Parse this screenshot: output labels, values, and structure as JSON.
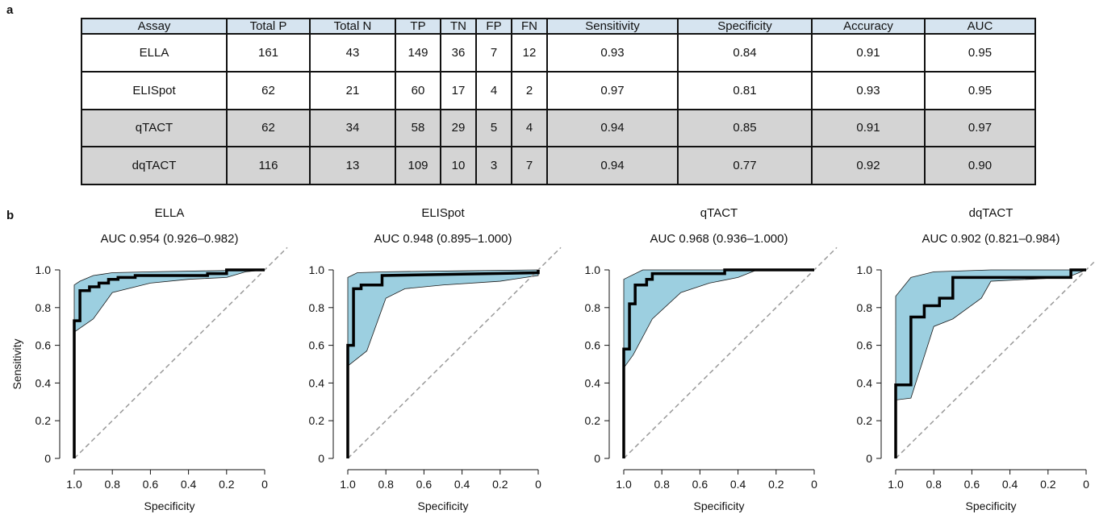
{
  "panel_labels": {
    "a": "a",
    "b": "b"
  },
  "table": {
    "headers": [
      "Assay",
      "Total P",
      "Total N",
      "TP",
      "TN",
      "FP",
      "FN",
      "Sensitivity",
      "Specificity",
      "Accuracy",
      "AUC"
    ],
    "rows": [
      [
        "ELLA",
        "161",
        "43",
        "149",
        "36",
        "7",
        "12",
        "0.93",
        "0.84",
        "0.91",
        "0.95"
      ],
      [
        "ELISpot",
        "62",
        "21",
        "60",
        "17",
        "4",
        "2",
        "0.97",
        "0.81",
        "0.93",
        "0.95"
      ],
      [
        "qTACT",
        "62",
        "34",
        "58",
        "29",
        "5",
        "4",
        "0.94",
        "0.85",
        "0.91",
        "0.97"
      ],
      [
        "dqTACT",
        "116",
        "13",
        "109",
        "10",
        "3",
        "7",
        "0.94",
        "0.77",
        "0.92",
        "0.90"
      ]
    ],
    "shaded_rows": [
      2,
      3
    ]
  },
  "colors": {
    "ci_fill": "#9ccfe0",
    "ci_stroke": "#1a1a1a",
    "curve": "#000000",
    "diagonal": "#9a9a9a",
    "header_bg": "#d6e4f0",
    "shaded_bg": "#d4d4d4"
  },
  "chart_data": [
    {
      "type": "line",
      "title": "ELLA",
      "subtitle": "AUC 0.954 (0.926–0.982)",
      "xlabel": "Specificity",
      "ylabel": "Sensitivity",
      "xlim": [
        1.0,
        0
      ],
      "ylim": [
        0,
        1.0
      ],
      "reversed_x": true,
      "xticks": [
        "1.0",
        "0.8",
        "0.6",
        "0.4",
        "0.2",
        "0"
      ],
      "yticks": [
        "0",
        "0.2",
        "0.4",
        "0.6",
        "0.8",
        "1.0"
      ],
      "series": [
        {
          "x": [
            1.0,
            1.0,
            0.97,
            0.97,
            0.92,
            0.92,
            0.87,
            0.87,
            0.82,
            0.82,
            0.77,
            0.77,
            0.68,
            0.68,
            0.3,
            0.3,
            0.2,
            0.2,
            0.0
          ],
          "y": [
            0.0,
            0.73,
            0.73,
            0.89,
            0.89,
            0.91,
            0.91,
            0.93,
            0.93,
            0.95,
            0.95,
            0.96,
            0.96,
            0.97,
            0.97,
            0.98,
            0.98,
            1.0,
            1.0
          ]
        }
      ],
      "ci_upper": [
        [
          1.0,
          0.92
        ],
        [
          0.97,
          0.94
        ],
        [
          0.9,
          0.97
        ],
        [
          0.8,
          0.985
        ],
        [
          0.6,
          0.99
        ],
        [
          0.3,
          0.995
        ],
        [
          0.0,
          1.0
        ]
      ],
      "ci_lower": [
        [
          1.0,
          0.67
        ],
        [
          0.9,
          0.74
        ],
        [
          0.8,
          0.88
        ],
        [
          0.6,
          0.93
        ],
        [
          0.4,
          0.95
        ],
        [
          0.2,
          0.96
        ],
        [
          0.1,
          0.99
        ],
        [
          0.0,
          1.0
        ]
      ],
      "diagonal": true
    },
    {
      "type": "line",
      "title": "ELISpot",
      "subtitle": "AUC 0.948 (0.895–1.000)",
      "xlabel": "Specificity",
      "ylabel": "",
      "xlim": [
        1.0,
        0
      ],
      "ylim": [
        0,
        1.0
      ],
      "reversed_x": true,
      "xticks": [
        "1.0",
        "0.8",
        "0.6",
        "0.4",
        "0.2",
        "0"
      ],
      "yticks": [
        "0",
        "0.2",
        "0.4",
        "0.6",
        "0.8",
        "1.0"
      ],
      "series": [
        {
          "x": [
            1.0,
            1.0,
            0.97,
            0.97,
            0.93,
            0.93,
            0.82,
            0.82,
            0.0,
            0.0
          ],
          "y": [
            0.0,
            0.6,
            0.6,
            0.9,
            0.9,
            0.92,
            0.92,
            0.97,
            0.985,
            1.0
          ]
        }
      ],
      "ci_upper": [
        [
          1.0,
          0.96
        ],
        [
          0.95,
          0.985
        ],
        [
          0.8,
          0.99
        ],
        [
          0.4,
          0.995
        ],
        [
          0.0,
          1.0
        ]
      ],
      "ci_lower": [
        [
          1.0,
          0.49
        ],
        [
          0.9,
          0.57
        ],
        [
          0.8,
          0.85
        ],
        [
          0.7,
          0.9
        ],
        [
          0.5,
          0.92
        ],
        [
          0.2,
          0.94
        ],
        [
          0.0,
          0.97
        ]
      ],
      "diagonal": true
    },
    {
      "type": "line",
      "title": "qTACT",
      "subtitle": "AUC 0.968 (0.936–1.000)",
      "xlabel": "Specificity",
      "ylabel": "",
      "xlim": [
        1.0,
        0
      ],
      "ylim": [
        0,
        1.0
      ],
      "reversed_x": true,
      "xticks": [
        "1.0",
        "0.8",
        "0.6",
        "0.4",
        "0.2",
        "0"
      ],
      "yticks": [
        "0",
        "0.2",
        "0.4",
        "0.6",
        "0.8",
        "1.0"
      ],
      "series": [
        {
          "x": [
            1.0,
            1.0,
            0.97,
            0.97,
            0.94,
            0.94,
            0.88,
            0.88,
            0.85,
            0.85,
            0.47,
            0.47,
            0.0
          ],
          "y": [
            0.0,
            0.58,
            0.58,
            0.82,
            0.82,
            0.92,
            0.92,
            0.95,
            0.95,
            0.98,
            0.98,
            1.0,
            1.0
          ]
        }
      ],
      "ci_upper": [
        [
          1.0,
          0.95
        ],
        [
          0.9,
          1.0
        ],
        [
          0.0,
          1.0
        ]
      ],
      "ci_lower": [
        [
          1.0,
          0.48
        ],
        [
          0.95,
          0.55
        ],
        [
          0.85,
          0.74
        ],
        [
          0.7,
          0.88
        ],
        [
          0.55,
          0.93
        ],
        [
          0.4,
          0.96
        ],
        [
          0.3,
          1.0
        ],
        [
          0.0,
          1.0
        ]
      ],
      "diagonal": true
    },
    {
      "type": "line",
      "title": "dqTACT",
      "subtitle": "AUC 0.902 (0.821–0.984)",
      "xlabel": "Specificity",
      "ylabel": "",
      "xlim": [
        1.0,
        0
      ],
      "ylim": [
        0,
        1.0
      ],
      "reversed_x": true,
      "xticks": [
        "1.0",
        "0.8",
        "0.6",
        "0.4",
        "0.2",
        "0"
      ],
      "yticks": [
        "0",
        "0.2",
        "0.4",
        "0.6",
        "0.8",
        "1.0"
      ],
      "series": [
        {
          "x": [
            1.0,
            1.0,
            0.92,
            0.92,
            0.85,
            0.85,
            0.77,
            0.77,
            0.7,
            0.7,
            0.08,
            0.08,
            0.0
          ],
          "y": [
            0.0,
            0.39,
            0.39,
            0.75,
            0.75,
            0.81,
            0.81,
            0.85,
            0.85,
            0.96,
            0.96,
            1.0,
            1.0
          ]
        }
      ],
      "ci_upper": [
        [
          1.0,
          0.86
        ],
        [
          0.92,
          0.96
        ],
        [
          0.8,
          0.99
        ],
        [
          0.5,
          1.0
        ],
        [
          0.0,
          1.0
        ]
      ],
      "ci_lower": [
        [
          1.0,
          0.31
        ],
        [
          0.92,
          0.32
        ],
        [
          0.8,
          0.7
        ],
        [
          0.7,
          0.74
        ],
        [
          0.55,
          0.85
        ],
        [
          0.5,
          0.94
        ],
        [
          0.1,
          0.96
        ],
        [
          0.0,
          1.0
        ]
      ],
      "diagonal": true
    }
  ]
}
